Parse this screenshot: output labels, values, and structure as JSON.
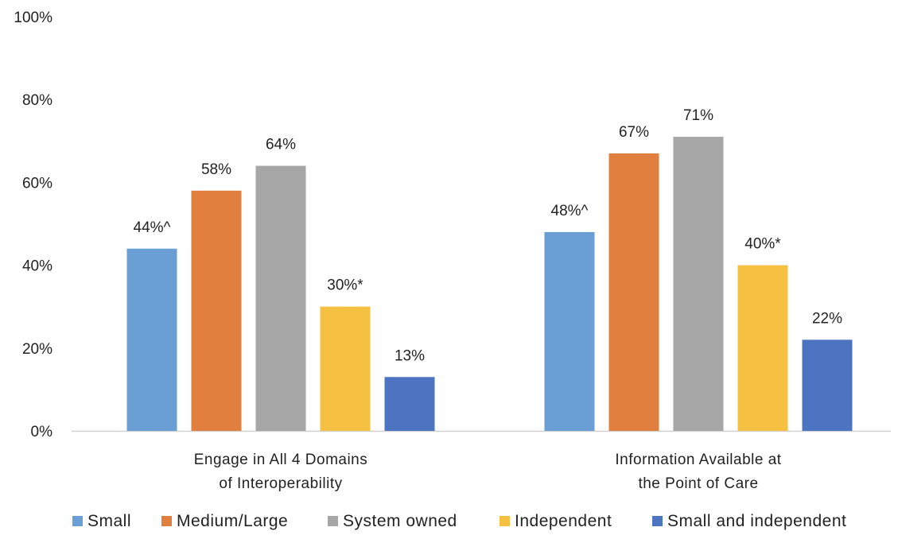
{
  "chart_data": {
    "type": "bar",
    "categories": [
      [
        "Engage in All 4 Domains",
        "of Interoperability"
      ],
      [
        "Information Available at",
        "the Point of Care"
      ]
    ],
    "series": [
      {
        "name": "Small",
        "color": "#6a9fd6",
        "values": [
          44,
          48
        ],
        "labels": [
          "44%^",
          "48%^"
        ]
      },
      {
        "name": "Medium/Large",
        "color": "#e07f3e",
        "values": [
          58,
          67
        ],
        "labels": [
          "58%",
          "67%"
        ]
      },
      {
        "name": "System owned",
        "color": "#a6a6a6",
        "values": [
          64,
          71
        ],
        "labels": [
          "64%",
          "71%"
        ]
      },
      {
        "name": "Independent",
        "color": "#f6c142",
        "values": [
          30,
          40
        ],
        "labels": [
          "30%*",
          "40%*"
        ]
      },
      {
        "name": "Small and independent",
        "color": "#4c74c1",
        "values": [
          13,
          22
        ],
        "labels": [
          "13%",
          "22%"
        ]
      }
    ],
    "ylim": [
      0,
      100
    ],
    "yticks": [
      "0%",
      "20%",
      "40%",
      "60%",
      "80%",
      "100%"
    ],
    "ytick_values": [
      0,
      20,
      40,
      60,
      80,
      100
    ],
    "grid": false,
    "legend_position": "bottom"
  }
}
